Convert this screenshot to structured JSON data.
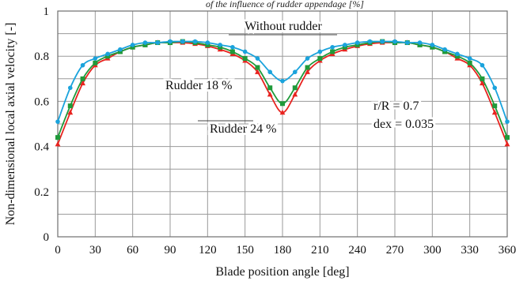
{
  "caption_fragment": "of the influence of rudder appendage [%]",
  "chart_data": {
    "type": "line",
    "xlabel": "Blade position angle [deg]",
    "ylabel": "Non-dimensional local axial velocity [-]",
    "xlim": [
      0,
      360
    ],
    "ylim": [
      0,
      1
    ],
    "xticks": [
      0,
      30,
      60,
      90,
      120,
      150,
      180,
      210,
      240,
      270,
      300,
      330,
      360
    ],
    "yticks": [
      0,
      0.2,
      0.4,
      0.6,
      0.8,
      1
    ],
    "ytick_labels": [
      "0",
      "0.2",
      "0.4",
      "0.6",
      "0.8",
      "1"
    ],
    "grid": true,
    "x": [
      0,
      10,
      20,
      30,
      40,
      50,
      60,
      70,
      80,
      90,
      100,
      110,
      120,
      130,
      140,
      150,
      160,
      170,
      180,
      190,
      200,
      210,
      220,
      230,
      240,
      250,
      260,
      270,
      280,
      290,
      300,
      310,
      320,
      330,
      340,
      350,
      360
    ],
    "series": [
      {
        "name": "Without rudder",
        "color": "#1aa3dc",
        "marker": "circle",
        "values": [
          0.51,
          0.66,
          0.76,
          0.79,
          0.81,
          0.83,
          0.85,
          0.86,
          0.86,
          0.865,
          0.865,
          0.865,
          0.86,
          0.85,
          0.84,
          0.82,
          0.79,
          0.73,
          0.69,
          0.73,
          0.79,
          0.82,
          0.84,
          0.85,
          0.86,
          0.865,
          0.865,
          0.865,
          0.86,
          0.86,
          0.85,
          0.83,
          0.81,
          0.79,
          0.76,
          0.66,
          0.51
        ]
      },
      {
        "name": "Rudder 18 %",
        "color": "#1f9a3a",
        "marker": "square",
        "values": [
          0.44,
          0.58,
          0.7,
          0.77,
          0.8,
          0.82,
          0.84,
          0.85,
          0.86,
          0.86,
          0.865,
          0.86,
          0.85,
          0.84,
          0.82,
          0.79,
          0.75,
          0.66,
          0.59,
          0.66,
          0.75,
          0.79,
          0.82,
          0.84,
          0.85,
          0.86,
          0.865,
          0.86,
          0.86,
          0.85,
          0.84,
          0.82,
          0.8,
          0.77,
          0.7,
          0.58,
          0.44
        ]
      },
      {
        "name": "Rudder 24 %",
        "color": "#e8231f",
        "marker": "triangle",
        "values": [
          0.41,
          0.55,
          0.68,
          0.76,
          0.79,
          0.82,
          0.84,
          0.85,
          0.86,
          0.86,
          0.86,
          0.855,
          0.845,
          0.83,
          0.81,
          0.78,
          0.73,
          0.63,
          0.55,
          0.63,
          0.73,
          0.78,
          0.81,
          0.83,
          0.845,
          0.855,
          0.86,
          0.86,
          0.86,
          0.85,
          0.84,
          0.82,
          0.79,
          0.76,
          0.68,
          0.55,
          0.41
        ]
      }
    ],
    "annotations": {
      "without_rudder": "Without rudder",
      "rudder18": "Rudder 18 %",
      "rudder24": "Rudder 24 %",
      "params_line1": "r/R = 0.7",
      "params_line2": "dex = 0.035"
    }
  }
}
